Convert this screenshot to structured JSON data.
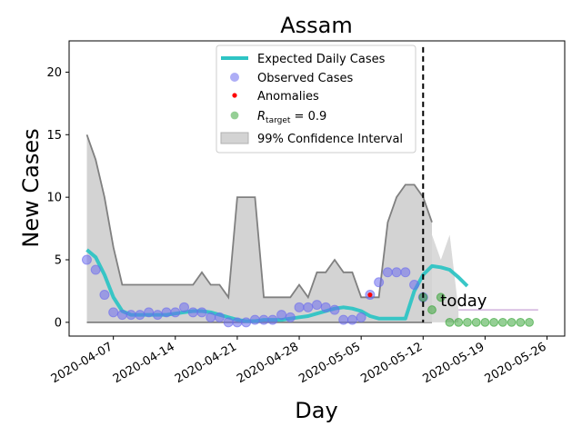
{
  "chart_data": {
    "type": "line",
    "title": "Assam",
    "xlabel": "Day",
    "ylabel": "New Cases",
    "x_start": "2020-04-04",
    "x_range": [
      "2020-04-02",
      "2020-05-28"
    ],
    "xticks": [
      {
        "day": 3,
        "label": "2020-04-07"
      },
      {
        "day": 10,
        "label": "2020-04-14"
      },
      {
        "day": 17,
        "label": "2020-04-21"
      },
      {
        "day": 24,
        "label": "2020-04-28"
      },
      {
        "day": 31,
        "label": "2020-05-05"
      },
      {
        "day": 38,
        "label": "2020-05-12"
      },
      {
        "day": 45,
        "label": "2020-05-19"
      },
      {
        "day": 52,
        "label": "2020-05-26"
      }
    ],
    "ylim": [
      -1.1,
      22.5
    ],
    "yticks": [
      0,
      5,
      10,
      15,
      20
    ],
    "today": {
      "day": 38,
      "label": "today"
    },
    "legend": {
      "position": "top-center",
      "entries": [
        {
          "key": "expected",
          "label": "Expected Daily Cases"
        },
        {
          "key": "observed",
          "label": "Observed Cases"
        },
        {
          "key": "anomalies",
          "label": "Anomalies"
        },
        {
          "key": "target",
          "label": "R",
          "sub": "target",
          "suffix": " = 0.9"
        },
        {
          "key": "ci",
          "label": "99% Confidence Interval"
        }
      ]
    },
    "colors": {
      "expected": "#2ec4c4",
      "observed": "#6b6bef",
      "anomaly": "#ff0000",
      "target": "#2ca02c",
      "ci_fill": "#d3d3d3",
      "ci_line": "#808080",
      "today_line": "#000000",
      "target_ci": "#c7a0d6"
    },
    "series": [
      {
        "name": "Expected Daily Cases",
        "x_start_day": 0,
        "values": [
          5.8,
          5.2,
          3.8,
          2.0,
          0.9,
          0.6,
          0.6,
          0.6,
          0.6,
          0.6,
          0.7,
          0.8,
          0.9,
          0.9,
          0.8,
          0.6,
          0.4,
          0.2,
          0.1,
          0.1,
          0.2,
          0.2,
          0.2,
          0.3,
          0.4,
          0.5,
          0.7,
          0.9,
          1.1,
          1.2,
          1.1,
          0.9,
          0.5,
          0.3,
          0.3,
          0.3,
          0.3,
          2.5,
          3.8,
          4.5,
          4.4,
          4.2,
          3.6,
          2.9
        ]
      },
      {
        "name": "Observed Cases",
        "x_start_day": 0,
        "values": [
          5.0,
          4.2,
          2.2,
          0.8,
          0.6,
          0.6,
          0.6,
          0.8,
          0.6,
          0.8,
          0.8,
          1.2,
          0.8,
          0.8,
          0.4,
          0.4,
          0.0,
          0.0,
          0.0,
          0.2,
          0.2,
          0.2,
          0.6,
          0.4,
          1.2,
          1.2,
          1.4,
          1.2,
          1.0,
          0.2,
          0.2,
          0.4,
          2.2,
          3.2,
          4.0,
          4.0,
          4.0,
          3.0,
          2.0
        ]
      },
      {
        "name": "Anomalies",
        "points": [
          {
            "day": 32,
            "value": 2.2
          }
        ]
      },
      {
        "name": "R_target = 0.9",
        "x_start_day": 38,
        "values": [
          2.0,
          1.0,
          2.0,
          0.0,
          0.0,
          0.0,
          0.0,
          0.0,
          0.0,
          0.0,
          0.0,
          0.0,
          0.0
        ]
      }
    ],
    "confidence_interval": {
      "name": "99% Confidence Interval",
      "x_start_day": 0,
      "upper": [
        15,
        13,
        10,
        6,
        3,
        3,
        3,
        3,
        3,
        3,
        3,
        3,
        3,
        4,
        3,
        3,
        2,
        10,
        10,
        10,
        2,
        2,
        2,
        2,
        3,
        2,
        4,
        4,
        5,
        4,
        4,
        2,
        2,
        2,
        8,
        10,
        11,
        11,
        10,
        8
      ],
      "lower": [
        0,
        0,
        0,
        0,
        0,
        0,
        0,
        0,
        0,
        0,
        0,
        0,
        0,
        0,
        0,
        0,
        0,
        0,
        0,
        0,
        0,
        0,
        0,
        0,
        0,
        0,
        0,
        0,
        0,
        0,
        0,
        0,
        0,
        0,
        0,
        0,
        0,
        0,
        0,
        0
      ],
      "forecast_upper": [
        8,
        7,
        5,
        7,
        1,
        1,
        1,
        1,
        1,
        1,
        1,
        1,
        1,
        1
      ],
      "forecast_start_day": 38
    }
  }
}
